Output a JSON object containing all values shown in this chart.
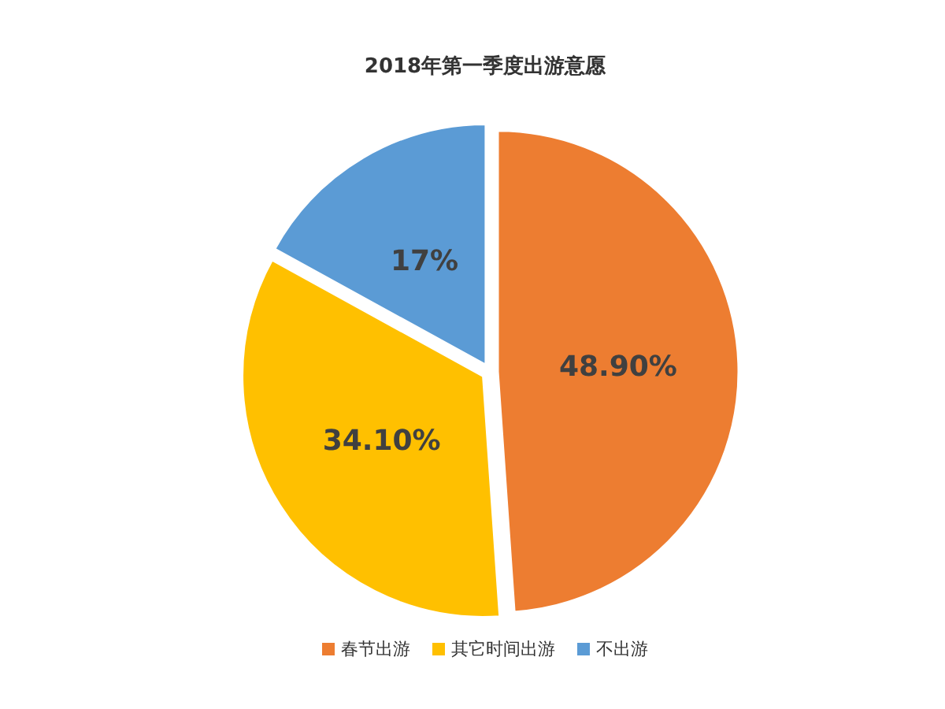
{
  "chart_data": {
    "type": "pie",
    "title": "2018年第一季度出游意愿",
    "categories": [
      "春节出游",
      "其它时间出游",
      "不出游"
    ],
    "values": [
      48.9,
      34.1,
      17
    ],
    "colors": [
      "#ed7d31",
      "#ffc000",
      "#5b9bd5"
    ],
    "value_labels": [
      "48.90%",
      "34.10%",
      "17%"
    ],
    "legend": "bottom"
  }
}
